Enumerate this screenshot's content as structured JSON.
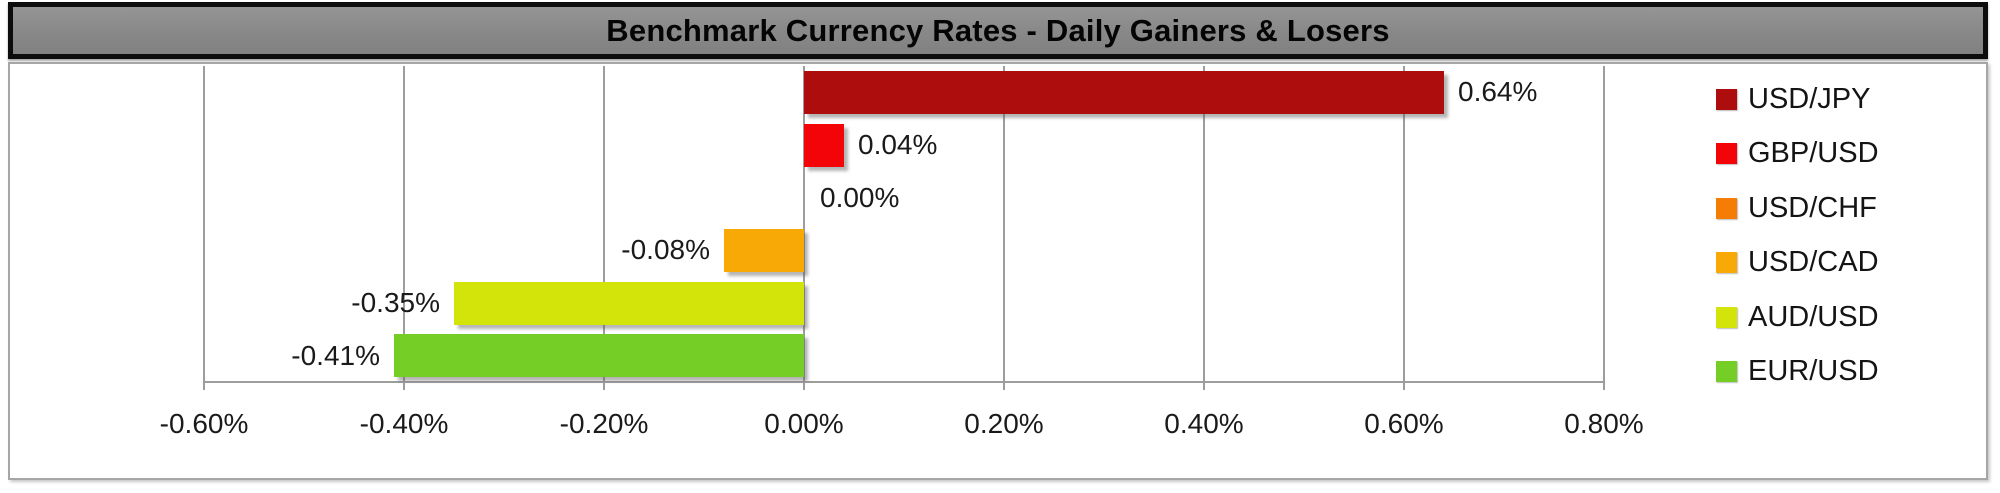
{
  "colors": {
    "page_background": "#ffffff",
    "title_bar_fill": "#8a8a8a",
    "title_bar_border": "#0d0d0d",
    "chart_border": "#a6a6a6",
    "gridline": "#9d9d9d",
    "label_text": "#1a1a1a"
  },
  "chart_data": {
    "type": "bar",
    "orientation": "horizontal",
    "title": "Benchmark Currency Rates - Daily Gainers & Losers",
    "series": [
      {
        "name": "USD/JPY",
        "value": 0.64,
        "label": "0.64%",
        "color": "#AE0D0E"
      },
      {
        "name": "GBP/USD",
        "value": 0.04,
        "label": "0.04%",
        "color": "#F20408"
      },
      {
        "name": "USD/CHF",
        "value": 0.0,
        "label": "0.00%",
        "color": "#F67D05"
      },
      {
        "name": "USD/CAD",
        "value": -0.08,
        "label": "-0.08%",
        "color": "#F8A905"
      },
      {
        "name": "AUD/USD",
        "value": -0.35,
        "label": "-0.35%",
        "color": "#D2E40A"
      },
      {
        "name": "EUR/USD",
        "value": -0.41,
        "label": "-0.41%",
        "color": "#74CE26"
      }
    ],
    "x_axis": {
      "min": -0.6,
      "max": 0.8,
      "tick_step": 0.2,
      "ticks": [
        -0.6,
        -0.4,
        -0.2,
        0.0,
        0.2,
        0.4,
        0.6,
        0.8
      ],
      "tick_labels": [
        "-0.60%",
        "-0.40%",
        "-0.20%",
        "0.00%",
        "0.20%",
        "0.40%",
        "0.60%",
        "0.80%"
      ],
      "unit": "%"
    },
    "grid": true,
    "legend_position": "right",
    "data_labels": true
  }
}
